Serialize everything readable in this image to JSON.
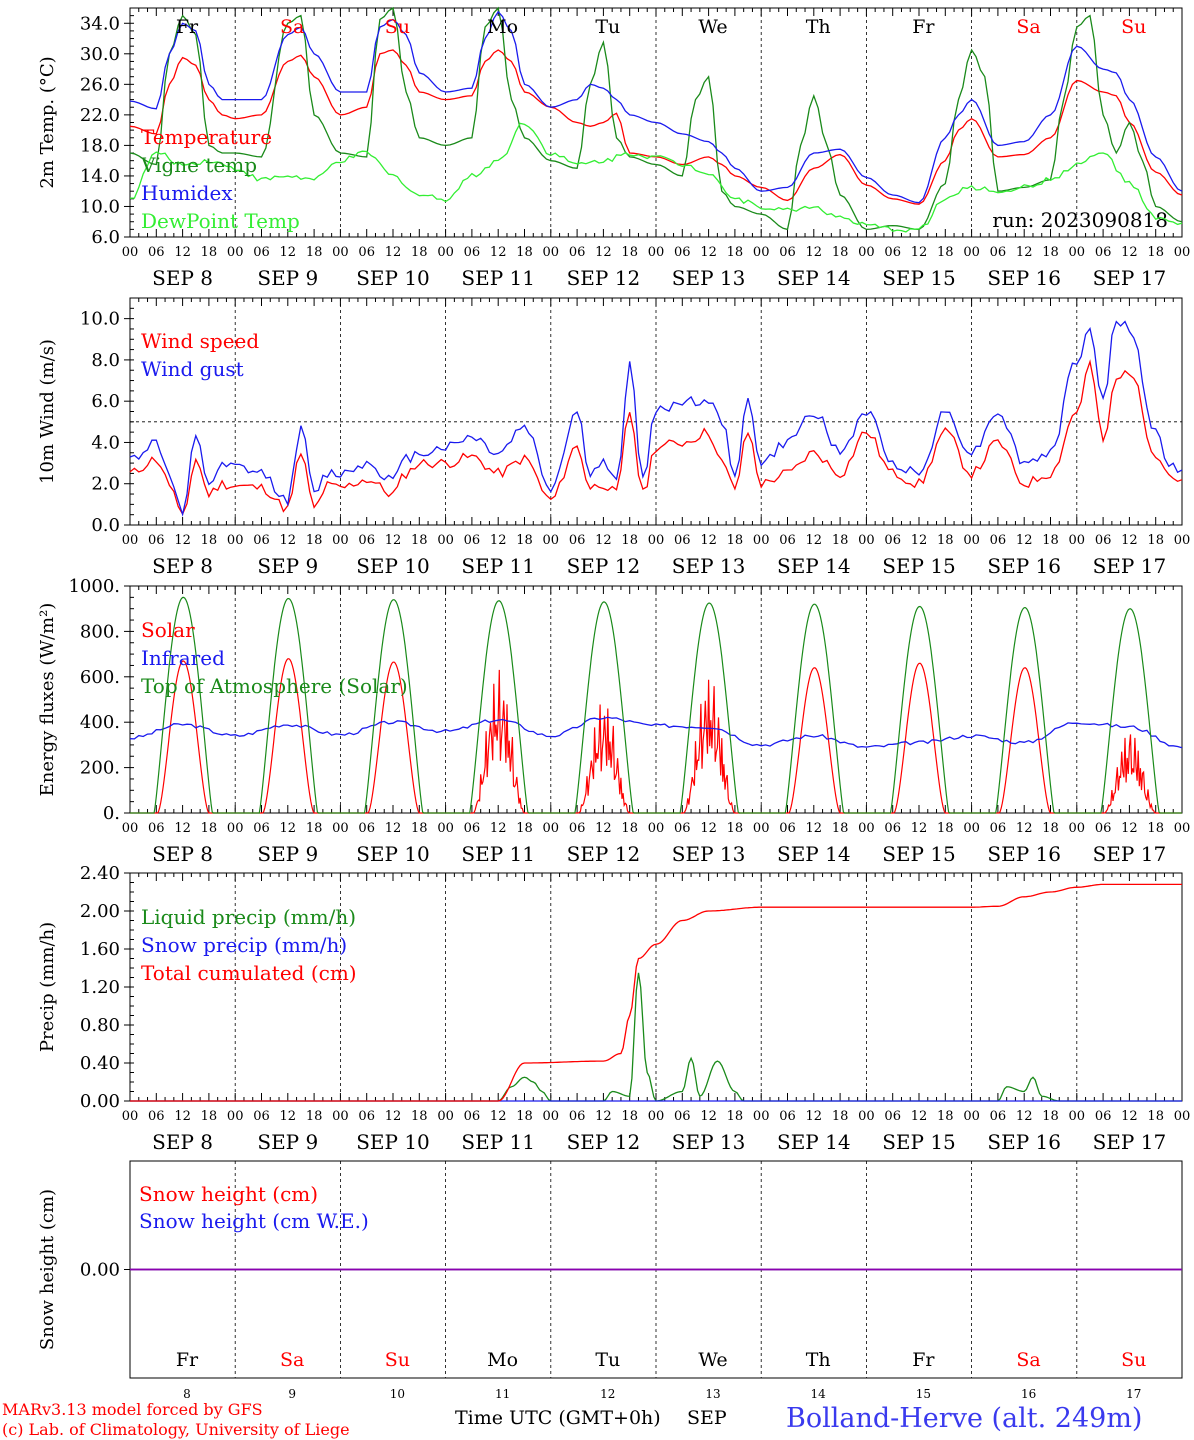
{
  "colors": {
    "red": "#ff0000",
    "dark_green": "#1a8a1a",
    "blue": "#1a1aee",
    "light_green": "#33ee33",
    "purple": "#8b00b0",
    "site_blue": "#3a3aee"
  },
  "days": {
    "weekday": [
      "Fr",
      "Sa",
      "Su",
      "Mo",
      "Tu",
      "We",
      "Th",
      "Fr",
      "Sa",
      "Su"
    ],
    "weekend": [
      false,
      true,
      true,
      false,
      false,
      false,
      false,
      false,
      true,
      true
    ],
    "date_labels": [
      "SEP  8",
      "SEP  9",
      "SEP 10",
      "SEP 11",
      "SEP 12",
      "SEP 13",
      "SEP 14",
      "SEP 15",
      "SEP 16",
      "SEP 17"
    ],
    "numbers": [
      "8",
      "9",
      "10",
      "11",
      "12",
      "13",
      "14",
      "15",
      "16",
      "17"
    ],
    "hour_labels": [
      "00",
      "06",
      "12",
      "18"
    ],
    "final_hour_label": "00"
  },
  "footer": {
    "credit_line1": "MARv3.13 model forced by GFS",
    "credit_line2": "(c) Lab. of Climatology, University of Liege",
    "time_label": "Time UTC (GMT+0h)",
    "month": "SEP",
    "site": "Bolland-Herve (alt. 249m)"
  },
  "chart_data": [
    {
      "type": "line",
      "ylabel": "2m Temp. (°C)",
      "ylim": [
        6.0,
        36.0
      ],
      "y_ticks": [
        "6.0",
        "10.0",
        "14.0",
        "18.0",
        "22.0",
        "26.0",
        "30.0",
        "34.0"
      ],
      "annotation": "run: 2023090818",
      "x_unit": "hours since SEP 8 00 UTC",
      "series": [
        {
          "name": "Temperature",
          "color": "red",
          "x": [
            0,
            6,
            9,
            12,
            15,
            18,
            21,
            24,
            30,
            36,
            39,
            42,
            48,
            54,
            57,
            60,
            63,
            66,
            72,
            78,
            81,
            84,
            87,
            90,
            96,
            102,
            105,
            108,
            111,
            114,
            120,
            126,
            132,
            135,
            138,
            144,
            150,
            156,
            162,
            168,
            174,
            180,
            186,
            189,
            192,
            198,
            204,
            210,
            216,
            222,
            225,
            228,
            234,
            240
          ],
          "y": [
            20.5,
            19.5,
            26,
            29.5,
            28.5,
            24,
            22,
            21.5,
            22,
            29,
            29.8,
            27,
            22,
            23,
            30,
            30.5,
            28.5,
            25,
            24,
            24.5,
            29,
            30.5,
            29,
            25,
            23,
            21,
            20.5,
            21,
            22.2,
            17,
            16.5,
            15.5,
            16.5,
            15.5,
            14,
            12.5,
            10.8,
            15,
            16.8,
            12.8,
            11,
            10.3,
            16,
            20,
            21.5,
            16.5,
            16.8,
            19,
            26.5,
            25,
            24.5,
            21,
            14.5,
            11.5
          ]
        },
        {
          "name": "Vigne temp",
          "color": "dark_green",
          "x": [
            0,
            6,
            9,
            12,
            15,
            18,
            21,
            24,
            30,
            36,
            39,
            42,
            48,
            54,
            57,
            60,
            63,
            66,
            72,
            78,
            81,
            84,
            87,
            90,
            96,
            102,
            105,
            108,
            111,
            114,
            120,
            126,
            129,
            132,
            135,
            138,
            144,
            150,
            153,
            156,
            159,
            162,
            168,
            174,
            180,
            186,
            189,
            192,
            195,
            198,
            204,
            210,
            213,
            216,
            219,
            222,
            225,
            228,
            231,
            234,
            240
          ],
          "y": [
            17,
            15.5,
            30,
            35,
            32.5,
            18,
            17,
            17,
            16.5,
            34,
            35,
            22,
            17,
            16.5,
            34.5,
            36,
            25,
            19,
            18,
            19,
            33.5,
            36,
            24,
            19,
            16,
            15,
            26,
            31.5,
            19,
            16.5,
            15.5,
            14,
            24,
            27,
            12,
            10,
            9,
            7,
            18,
            24.5,
            18,
            11.5,
            7,
            7.5,
            7,
            13,
            24,
            30.5,
            27,
            12,
            12.5,
            13.5,
            24,
            33.5,
            35,
            22,
            17,
            21,
            16,
            10,
            8
          ]
        },
        {
          "name": "Humidex",
          "color": "blue",
          "x": [
            0,
            6,
            9,
            12,
            15,
            18,
            21,
            24,
            30,
            36,
            39,
            42,
            48,
            54,
            57,
            60,
            63,
            66,
            72,
            78,
            81,
            84,
            87,
            90,
            96,
            102,
            105,
            108,
            111,
            114,
            120,
            126,
            132,
            135,
            138,
            144,
            150,
            156,
            162,
            168,
            174,
            180,
            186,
            189,
            192,
            198,
            204,
            210,
            216,
            222,
            225,
            228,
            234,
            240
          ],
          "y": [
            23.8,
            22.8,
            30,
            34,
            33,
            26,
            24,
            24,
            24,
            32.5,
            33.5,
            30,
            25,
            25,
            33.5,
            34.5,
            32.5,
            27.5,
            25,
            25.5,
            32,
            35.5,
            33,
            26,
            23,
            24,
            26,
            25.5,
            24,
            22,
            21,
            19.5,
            18.5,
            17,
            15,
            12,
            12.5,
            17,
            17.5,
            13.8,
            11.5,
            10.5,
            19,
            22,
            24,
            18,
            18.5,
            22,
            31,
            28,
            27.5,
            24,
            16.5,
            12
          ]
        },
        {
          "name": "DewPoint Temp",
          "color": "light_green",
          "x": [
            0,
            6,
            12,
            18,
            24,
            30,
            36,
            42,
            48,
            54,
            60,
            66,
            72,
            78,
            84,
            90,
            96,
            102,
            108,
            114,
            120,
            126,
            132,
            138,
            144,
            150,
            156,
            162,
            168,
            174,
            180,
            186,
            192,
            198,
            204,
            210,
            216,
            222,
            228,
            234,
            240
          ],
          "y": [
            11,
            17,
            15.5,
            16,
            15,
            13.5,
            14,
            13.5,
            16,
            17,
            14,
            11.5,
            11,
            14,
            16,
            21,
            17,
            15.5,
            16,
            17,
            16.5,
            15.5,
            14.5,
            11,
            10,
            9.5,
            10,
            8.5,
            7.5,
            7,
            7,
            11,
            12.5,
            12,
            12.5,
            13.5,
            15.5,
            17,
            13,
            8.5,
            7.5
          ]
        }
      ]
    },
    {
      "type": "line",
      "ylabel": "10m Wind (m/s)",
      "ylim": [
        0.0,
        11.0
      ],
      "y_ticks": [
        "0.0",
        "2.0",
        "4.0",
        "6.0",
        "8.0",
        "10.0"
      ],
      "reference_line": 5.0,
      "series": [
        {
          "name": "Wind speed",
          "color": "red",
          "x": [
            0,
            6,
            9,
            12,
            15,
            18,
            21,
            24,
            30,
            36,
            39,
            42,
            45,
            48,
            54,
            60,
            63,
            66,
            72,
            78,
            84,
            90,
            96,
            102,
            105,
            108,
            111,
            114,
            117,
            120,
            126,
            132,
            135,
            138,
            141,
            144,
            150,
            156,
            162,
            168,
            174,
            180,
            186,
            192,
            198,
            204,
            210,
            216,
            219,
            222,
            225,
            228,
            234,
            237,
            240
          ],
          "y": [
            2.5,
            3.2,
            2,
            0.3,
            3.2,
            1.5,
            2,
            1.9,
            1.8,
            0.8,
            3.5,
            0.8,
            1.9,
            1.8,
            2.2,
            1.5,
            2.5,
            3,
            3,
            3.3,
            2.5,
            3.2,
            1.2,
            3.8,
            1.8,
            2,
            1.5,
            5.5,
            1.5,
            3.8,
            4,
            4.5,
            3,
            1.8,
            4.5,
            2,
            2.5,
            3.5,
            2.5,
            4.5,
            2.5,
            2,
            4.5,
            2.5,
            4,
            2,
            2.5,
            5.5,
            7.8,
            4,
            7,
            7.5,
            3.5,
            2.5,
            2
          ]
        },
        {
          "name": "Wind gust",
          "color": "blue",
          "x": [
            0,
            6,
            9,
            12,
            15,
            18,
            21,
            24,
            30,
            36,
            39,
            42,
            45,
            48,
            54,
            60,
            63,
            66,
            72,
            78,
            84,
            90,
            96,
            102,
            105,
            108,
            111,
            114,
            117,
            120,
            126,
            132,
            135,
            138,
            141,
            144,
            150,
            156,
            162,
            168,
            174,
            180,
            186,
            192,
            198,
            204,
            210,
            216,
            219,
            222,
            225,
            228,
            234,
            237,
            240
          ],
          "y": [
            3.2,
            4,
            2.5,
            0.5,
            4.2,
            2,
            2.8,
            2.8,
            2.5,
            1.2,
            4.8,
            1.5,
            2.5,
            2.5,
            3,
            2.2,
            3.2,
            3.5,
            3.8,
            4.3,
            3.5,
            4.8,
            1.8,
            5.5,
            2.5,
            3,
            2,
            7.8,
            2.2,
            5.5,
            6,
            6,
            5,
            2.5,
            6,
            3,
            4,
            5.5,
            3.5,
            5.5,
            3,
            2.5,
            5.5,
            3.5,
            5.5,
            3,
            3.5,
            8,
            9.5,
            6,
            10,
            9.5,
            4.5,
            3,
            2.5
          ]
        }
      ]
    },
    {
      "type": "line",
      "ylabel": "Energy fluxes (W/m²)",
      "ylim": [
        0,
        1000
      ],
      "y_ticks": [
        "0.",
        "200.",
        "400.",
        "600.",
        "800.",
        "1000."
      ],
      "series": [
        {
          "name": "Solar",
          "color": "red",
          "peaks": [
            670,
            680,
            665,
            660,
            530,
            640,
            640,
            660,
            640,
            390
          ]
        },
        {
          "name": "Infrared",
          "color": "blue",
          "x": [
            0,
            12,
            24,
            36,
            48,
            60,
            72,
            84,
            96,
            108,
            120,
            132,
            144,
            156,
            168,
            180,
            192,
            204,
            216,
            228,
            240
          ],
          "y": [
            330,
            390,
            340,
            390,
            345,
            400,
            360,
            410,
            340,
            420,
            385,
            380,
            300,
            340,
            290,
            310,
            340,
            310,
            400,
            380,
            290
          ]
        },
        {
          "name": "Top of Atmosphere (Solar)",
          "color": "dark_green",
          "peaks": [
            950,
            945,
            940,
            935,
            930,
            925,
            920,
            910,
            905,
            900
          ]
        }
      ]
    },
    {
      "type": "line",
      "ylabel": "Precip (mm/h)",
      "ylim": [
        0.0,
        2.4
      ],
      "y_ticks": [
        "0.00",
        "0.40",
        "0.80",
        "1.20",
        "1.60",
        "2.00",
        "2.40"
      ],
      "series": [
        {
          "name": "Liquid precip (mm/h)",
          "color": "dark_green",
          "x": [
            0,
            84,
            87,
            90,
            92,
            94,
            96,
            108,
            110,
            114,
            116,
            118,
            120,
            126,
            128,
            130,
            134,
            138,
            140,
            144,
            192,
            198,
            200,
            204,
            206,
            208,
            212,
            240
          ],
          "y": [
            0,
            0,
            0.15,
            0.25,
            0.2,
            0.1,
            0,
            0,
            0.1,
            0.05,
            1.35,
            0.3,
            0,
            0.1,
            0.45,
            0.05,
            0.42,
            0.1,
            0,
            0,
            0,
            0,
            0.15,
            0.1,
            0.25,
            0.05,
            0,
            0
          ]
        },
        {
          "name": "Snow precip (mm/h)",
          "color": "blue",
          "x": [
            0,
            240
          ],
          "y": [
            0,
            0
          ]
        },
        {
          "name": "Total cumulated (cm)",
          "color": "red",
          "x": [
            0,
            64,
            84,
            90,
            108,
            112,
            114,
            116,
            120,
            126,
            132,
            144,
            150,
            192,
            198,
            204,
            210,
            216,
            222,
            240
          ],
          "y": [
            0,
            0,
            0,
            0.4,
            0.42,
            0.5,
            0.9,
            1.5,
            1.65,
            1.9,
            2.0,
            2.04,
            2.04,
            2.04,
            2.05,
            2.15,
            2.2,
            2.25,
            2.28,
            2.28
          ]
        }
      ]
    },
    {
      "type": "line",
      "ylabel": "Snow height (cm)",
      "ylim": [
        -1.0,
        1.0
      ],
      "y_ticks": [
        "0.00"
      ],
      "series": [
        {
          "name": "Snow height (cm)",
          "color": "red",
          "x": [
            0,
            240
          ],
          "y": [
            0,
            0
          ]
        },
        {
          "name": "Snow height (cm W.E.)",
          "color": "blue",
          "x": [
            0,
            240
          ],
          "y": [
            0,
            0
          ]
        }
      ]
    }
  ]
}
